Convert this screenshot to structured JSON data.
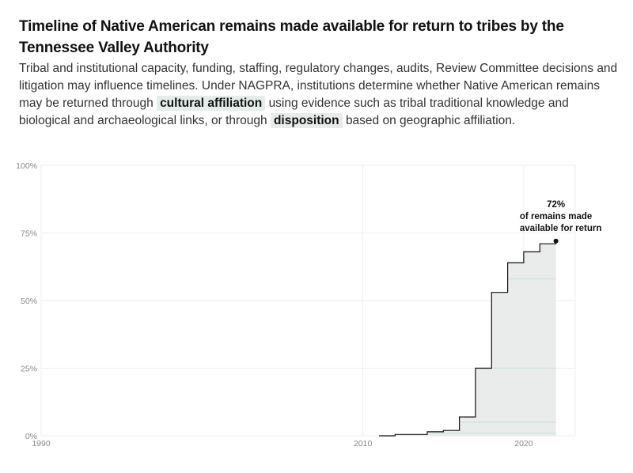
{
  "header": {
    "title": "Timeline of Native American remains made available for return to tribes by the Tennessee Valley Authority",
    "desc_1": "Tribal and institutional capacity, funding, staffing, regulatory changes, audits, Review Committee decisions and litigation may influence timelines. Under NAGPRA, institutions determine whether Native American remains may be returned through",
    "highlight_1": "cultural affiliation",
    "desc_2": "using evidence such as tribal traditional knowledge and biological and archaeological links, or through",
    "highlight_2": "disposition",
    "desc_3": "based on geographic affiliation."
  },
  "colors": {
    "line": "#121212",
    "fill": "#e9eceb",
    "affiliation_band": "#cfe3dc",
    "grid": "#eeeeee",
    "highlight_affiliation": "#e3ede9",
    "highlight_disposition": "#e9ebea"
  },
  "chart_data": {
    "type": "area",
    "x_label_ticks": [
      "1990",
      "2010",
      "2020"
    ],
    "y_ticks": [
      "0%",
      "25%",
      "50%",
      "75%",
      "100%"
    ],
    "xlim": [
      1990,
      2023.2
    ],
    "ylim": [
      0,
      100
    ],
    "grid": true,
    "series": [
      {
        "step": true,
        "x": [
          2011.0,
          2012.0,
          2013.0,
          2014.0,
          2015.0,
          2016.0,
          2017.0,
          2018.0,
          2019.0,
          2020.0,
          2021.0,
          2022.0
        ],
        "y": [
          0,
          0.5,
          0.5,
          1.5,
          2,
          7,
          25,
          53,
          64,
          68,
          71,
          72
        ]
      }
    ],
    "affiliation_levels": [
      1,
      5,
      25,
      58
    ],
    "end_point": {
      "x": 2022.0,
      "y": 72
    },
    "annotation": {
      "value": "72%",
      "line1": "of remains made",
      "line2": "available for return"
    }
  }
}
